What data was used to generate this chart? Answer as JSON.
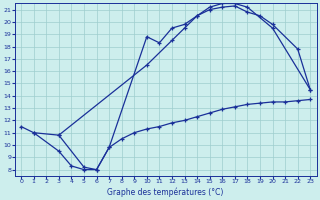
{
  "title": "Graphe des températures (°C)",
  "background_color": "#cdeeed",
  "line_color": "#1a3099",
  "xlim": [
    -0.5,
    23.5
  ],
  "ylim": [
    7.5,
    21.5
  ],
  "xticks": [
    0,
    1,
    2,
    3,
    4,
    5,
    6,
    7,
    8,
    9,
    10,
    11,
    12,
    13,
    14,
    15,
    16,
    17,
    18,
    19,
    20,
    21,
    22,
    23
  ],
  "yticks": [
    8,
    9,
    10,
    11,
    12,
    13,
    14,
    15,
    16,
    17,
    18,
    19,
    20,
    21
  ],
  "curve1_x": [
    0,
    1,
    3,
    4,
    5,
    6,
    7,
    10,
    11,
    12,
    13,
    14,
    15,
    16,
    17,
    18,
    20,
    23
  ],
  "curve1_y": [
    11.5,
    11.0,
    9.5,
    8.3,
    8.0,
    8.0,
    9.8,
    18.8,
    18.3,
    19.5,
    19.8,
    20.5,
    21.2,
    21.5,
    21.5,
    21.2,
    19.5,
    14.5
  ],
  "curve2_x": [
    1,
    3,
    10,
    12,
    13,
    14,
    15,
    16,
    17,
    18,
    19,
    20,
    22,
    23
  ],
  "curve2_y": [
    11.0,
    10.8,
    16.5,
    18.5,
    19.5,
    20.5,
    21.0,
    21.2,
    21.3,
    20.8,
    20.5,
    19.8,
    17.8,
    14.5
  ],
  "curve3_x": [
    3,
    5,
    6,
    7,
    8,
    9,
    10,
    11,
    12,
    13,
    14,
    15,
    16,
    17,
    18,
    19,
    20,
    21,
    22,
    23
  ],
  "curve3_y": [
    10.8,
    8.2,
    8.0,
    9.8,
    10.5,
    11.0,
    11.3,
    11.5,
    11.8,
    12.0,
    12.3,
    12.6,
    12.9,
    13.1,
    13.3,
    13.4,
    13.5,
    13.5,
    13.6,
    13.7
  ]
}
